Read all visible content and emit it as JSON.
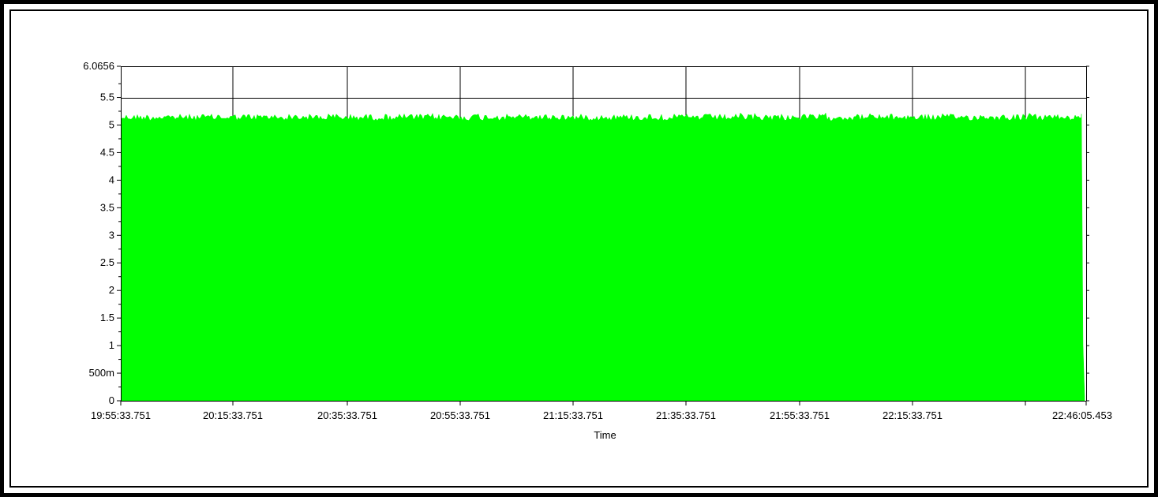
{
  "chart_data": {
    "type": "area",
    "title": "",
    "xlabel": "Time",
    "ylabel": "",
    "x_tick_labels": [
      "19:55:33.751",
      "20:15:33.751",
      "20:35:33.751",
      "20:55:33.751",
      "21:15:33.751",
      "21:35:33.751",
      "21:55:33.751",
      "22:15:33.751",
      "22:46:05.453"
    ],
    "y_tick_labels": [
      "0",
      "500m",
      "1",
      "1.5",
      "2",
      "2.5",
      "3",
      "3.5",
      "4",
      "4.5",
      "5",
      "5.5",
      "6.0656"
    ],
    "y_tick_values": [
      0,
      0.5,
      1,
      1.5,
      2,
      2.5,
      3,
      3.5,
      4,
      4.5,
      5,
      5.5,
      6.0656
    ],
    "x_range": [
      "19:55:33.751",
      "22:46:05.453"
    ],
    "ylim": [
      0,
      6.0656
    ],
    "grid": "vertical gridlines at x ticks",
    "series": [
      {
        "color": "#00ff00",
        "description_values": {
          "min": 0,
          "max_envelope": 5.22,
          "typical_top": 5.2
        }
      }
    ]
  }
}
